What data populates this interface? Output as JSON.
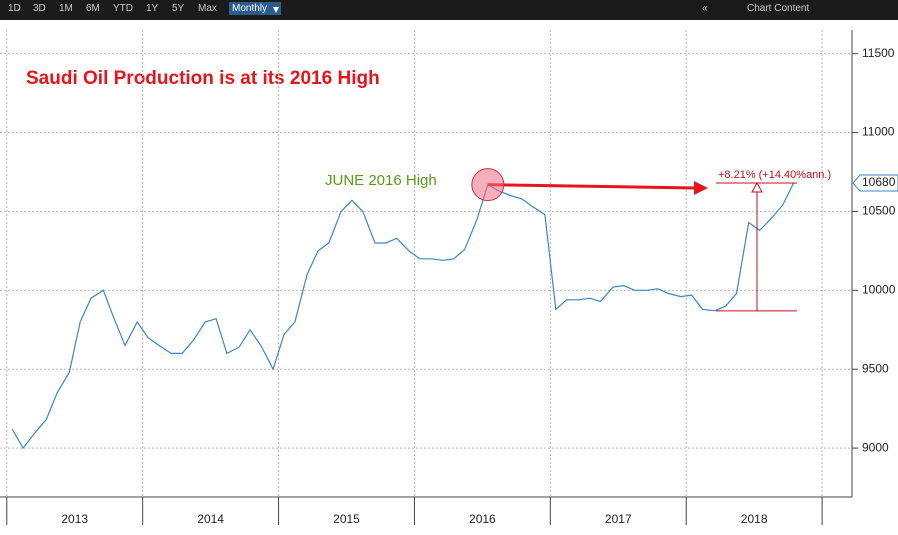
{
  "toolbar": {
    "ranges": [
      "1D",
      "3D",
      "1M",
      "6M",
      "YTD",
      "1Y",
      "5Y",
      "Max"
    ],
    "frequency": "Monthly",
    "collapse": "«",
    "chart_content": "Chart Content"
  },
  "chart_data": {
    "type": "line",
    "title": "Saudi Oil Production is at its 2016 High",
    "annotation": "JUNE 2016 High",
    "change_label": "+8.21% (+14.40%ann.)",
    "x": [
      2013.04,
      2013.12,
      2013.21,
      2013.29,
      2013.37,
      2013.46,
      2013.54,
      2013.62,
      2013.71,
      2013.79,
      2013.87,
      2013.96,
      2014.04,
      2014.12,
      2014.21,
      2014.29,
      2014.37,
      2014.46,
      2014.54,
      2014.62,
      2014.71,
      2014.79,
      2014.87,
      2014.96,
      2015.04,
      2015.12,
      2015.21,
      2015.29,
      2015.37,
      2015.46,
      2015.54,
      2015.62,
      2015.71,
      2015.79,
      2015.87,
      2015.96,
      2016.04,
      2016.12,
      2016.21,
      2016.29,
      2016.37,
      2016.46,
      2016.54,
      2016.62,
      2016.71,
      2016.79,
      2016.87,
      2016.96,
      2017.04,
      2017.12,
      2017.21,
      2017.29,
      2017.37,
      2017.46,
      2017.54,
      2017.62,
      2017.71,
      2017.79,
      2017.87,
      2017.96,
      2018.04,
      2018.12,
      2018.21,
      2018.29,
      2018.37,
      2018.46,
      2018.54,
      2018.62,
      2018.71,
      2018.79
    ],
    "series": [
      {
        "color": "#3b86c6",
        "values": [
          9120,
          9000,
          9100,
          9180,
          9350,
          9480,
          9800,
          9950,
          10000,
          9820,
          9650,
          9800,
          9700,
          9650,
          9600,
          9600,
          9680,
          9800,
          9820,
          9600,
          9640,
          9750,
          9650,
          9500,
          9720,
          9800,
          10100,
          10250,
          10300,
          10500,
          10570,
          10500,
          10300,
          10300,
          10330,
          10250,
          10200,
          10200,
          10190,
          10200,
          10260,
          10450,
          10670,
          10630,
          10600,
          10580,
          10530,
          10480,
          9880,
          9940,
          9940,
          9950,
          9930,
          10020,
          10030,
          10000,
          10000,
          10010,
          9980,
          9960,
          9970,
          9880,
          9870,
          9900,
          9980,
          10430,
          10380,
          10450,
          10540,
          10680
        ]
      }
    ],
    "xlim": [
      2012.95,
      2019.22
    ],
    "xticks": [
      2013,
      2014,
      2015,
      2016,
      2017,
      2018,
      2019
    ],
    "x_labels": [
      "2013",
      "2014",
      "2015",
      "2016",
      "2017",
      "2018"
    ],
    "ylim": [
      8690,
      11650
    ],
    "yticks": [
      9000,
      9500,
      10000,
      10500,
      11000,
      11500
    ],
    "grid": true
  }
}
